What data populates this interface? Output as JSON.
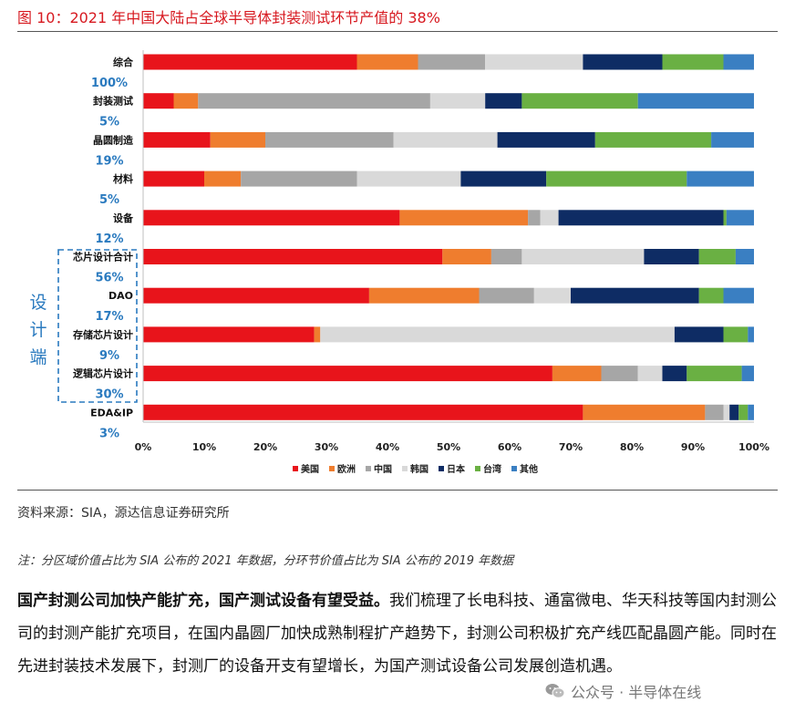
{
  "figure": {
    "title": "图 10：2021 年中国大陆占全球半导体封装测试环节产值的 38%",
    "source": "资料来源：SIA，源达信息证券研究所",
    "note": "注：分区域价值占比为 SIA 公布的 2021 年数据，分环节价值占比为 SIA 公布的 2019 年数据"
  },
  "body": {
    "bold_lead": "国产封测公司加快产能扩充，国产测试设备有望受益。",
    "text": "我们梳理了长电科技、通富微电、华天科技等国内封测公司的封测产能扩充项目，在国内晶圆厂加快成熟制程扩产趋势下，封测公司积极扩充产线匹配晶圆产能。同时在先进封装技术发展下，封测厂的设备开支有望增长，为国产测试设备公司发展创造机遇。"
  },
  "watermark": {
    "text": "公众号 · 半导体在线",
    "icon": "wechat-icon"
  },
  "chart_data": {
    "type": "bar",
    "orientation": "horizontal",
    "stacked": true,
    "percent_stacked": true,
    "categories": [
      {
        "name": "综合",
        "share": "100%"
      },
      {
        "name": "封装测试",
        "share": "5%"
      },
      {
        "name": "晶圆制造",
        "share": "19%"
      },
      {
        "name": "材料",
        "share": "5%"
      },
      {
        "name": "设备",
        "share": "12%"
      },
      {
        "name": "芯片设计合计",
        "share": "56%"
      },
      {
        "name": "DAO",
        "share": "17%"
      },
      {
        "name": "存储芯片设计",
        "share": "9%"
      },
      {
        "name": "逻辑芯片设计",
        "share": "30%"
      },
      {
        "name": "EDA&IP",
        "share": "3%"
      }
    ],
    "series": [
      {
        "name": "美国",
        "color": "#e8141b",
        "values": [
          35,
          5,
          11,
          10,
          42,
          49,
          37,
          28,
          67,
          72
        ]
      },
      {
        "name": "欧洲",
        "color": "#ef7d2e",
        "values": [
          10,
          4,
          9,
          6,
          21,
          8,
          18,
          1,
          8,
          20
        ]
      },
      {
        "name": "中国",
        "color": "#a6a6a6",
        "values": [
          11,
          38,
          21,
          19,
          2,
          5,
          9,
          0,
          6,
          3
        ]
      },
      {
        "name": "韩国",
        "color": "#d9d9d9",
        "values": [
          16,
          9,
          17,
          17,
          3,
          20,
          6,
          58,
          4,
          1
        ]
      },
      {
        "name": "日本",
        "color": "#0e2c64",
        "values": [
          13,
          6,
          16,
          14,
          27,
          9,
          21,
          8,
          4,
          1.5
        ]
      },
      {
        "name": "台湾",
        "color": "#6ab043",
        "values": [
          10,
          19,
          19,
          23,
          0.5,
          6,
          4,
          4,
          9,
          1.5
        ]
      },
      {
        "name": "其他",
        "color": "#3a7fc2",
        "values": [
          5,
          19,
          7,
          11,
          4.5,
          3,
          5,
          1,
          2,
          1
        ]
      }
    ],
    "x_ticks": [
      "0%",
      "10%",
      "20%",
      "30%",
      "40%",
      "50%",
      "60%",
      "70%",
      "80%",
      "90%",
      "100%"
    ],
    "xlim": [
      0,
      100
    ],
    "group_label": "设计端",
    "legend_position": "bottom",
    "grid": false
  }
}
